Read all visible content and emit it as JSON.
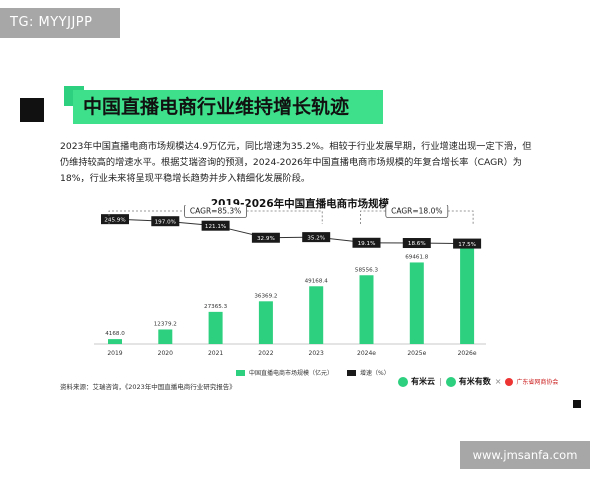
{
  "corner_tag": "TG: MYYJJPP",
  "title": "中国直播电商行业维持增长轨迹",
  "intro": "2023年中国直播电商市场规模达4.9万亿元，同比增速为35.2%。相较于行业发展早期，行业增速出现一定下滑，但仍维持较高的增速水平。根据艾瑞咨询的预测，2024-2026年中国直播电商市场规模的年复合增长率（CAGR）为18%，行业未来将呈现平稳增长趋势并步入精细化发展阶段。",
  "source": "资料来源：艾瑞咨询，《2023年中国直播电商行业研究报告》",
  "logos": {
    "a": "有米云",
    "b": "有米有数",
    "x": "×",
    "c": "广东省网商协会"
  },
  "watermark": "www.jmsanfa.com",
  "colors": {
    "bar": "#2cd07e",
    "line": "#333333",
    "label_bg": "#1a1a1a",
    "accent": "#3ee08c"
  },
  "chart_data": {
    "type": "bar+line",
    "title": "2019-2026年中国直播电商市场规模",
    "categories": [
      "2019",
      "2020",
      "2021",
      "2022",
      "2023",
      "2024e",
      "2025e",
      "2026e"
    ],
    "series": [
      {
        "name": "中国直播电商市场规模（亿元）",
        "type": "bar",
        "values": [
          4168.0,
          12379.2,
          27365.3,
          36369.2,
          49168.4,
          58556.3,
          69461.8,
          81593.2
        ],
        "labels": [
          "4168.0",
          "12379.2",
          "27365.3",
          "36369.2",
          "49168.4",
          "58556.3",
          "69461.8",
          "81593.2"
        ]
      },
      {
        "name": "增速（%）",
        "type": "line",
        "values": [
          245.9,
          197.0,
          121.1,
          32.9,
          35.2,
          19.1,
          18.6,
          17.5
        ],
        "labels": [
          "245.9%",
          "197.0%",
          "121.1%",
          "32.9%",
          "35.2%",
          "19.1%",
          "18.6%",
          "17.5%"
        ]
      }
    ],
    "annotations": [
      {
        "text": "CAGR=85.3%",
        "from": "2019",
        "to": "2023"
      },
      {
        "text": "CAGR=18.0%",
        "from": "2024e",
        "to": "2026e"
      }
    ],
    "legend": "bottom"
  }
}
